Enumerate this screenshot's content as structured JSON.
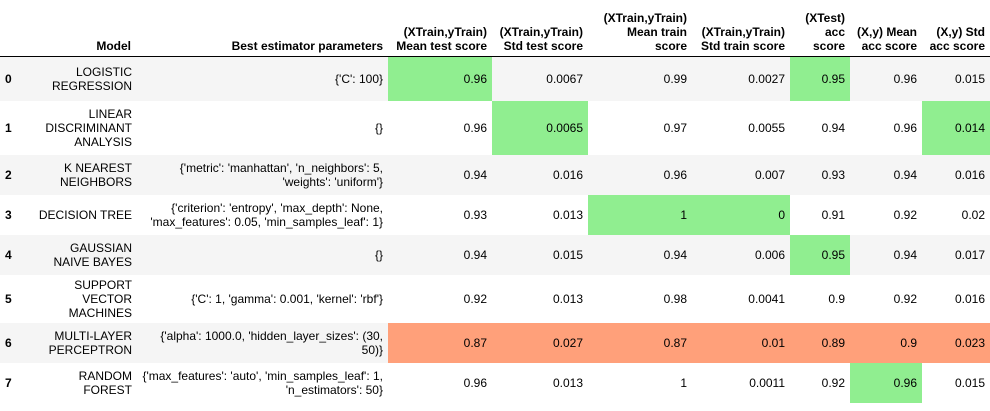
{
  "columns": [
    "",
    "Model",
    "Best estimator parameters",
    "(XTrain,yTrain) Mean test score",
    "(XTrain,yTrain) Std test score",
    "(XTrain,yTrain) Mean train score",
    "(XTrain,yTrain) Std train score",
    "(XTest) acc score",
    "(X,y) Mean acc score",
    "(X,y) Std acc score"
  ],
  "rows": [
    {
      "index": "0",
      "model": "LOGISTIC REGRESSION",
      "params": "{'C': 100}",
      "values": [
        "0.96",
        "0.0067",
        "0.99",
        "0.0027",
        "0.95",
        "0.96",
        "0.015"
      ],
      "highlight": [
        "best",
        "",
        "",
        "",
        "best",
        "",
        ""
      ]
    },
    {
      "index": "1",
      "model": "LINEAR DISCRIMINANT ANALYSIS",
      "params": "{}",
      "values": [
        "0.96",
        "0.0065",
        "0.97",
        "0.0055",
        "0.94",
        "0.96",
        "0.014"
      ],
      "highlight": [
        "",
        "best",
        "",
        "",
        "",
        "",
        "best"
      ]
    },
    {
      "index": "2",
      "model": "K NEAREST NEIGHBORS",
      "params": "{'metric': 'manhattan', 'n_neighbors': 5, 'weights': 'uniform'}",
      "values": [
        "0.94",
        "0.016",
        "0.96",
        "0.007",
        "0.93",
        "0.94",
        "0.016"
      ],
      "highlight": [
        "",
        "",
        "",
        "",
        "",
        "",
        ""
      ]
    },
    {
      "index": "3",
      "model": "DECISION TREE",
      "params": "{'criterion': 'entropy', 'max_depth': None, 'max_features': 0.05, 'min_samples_leaf': 1}",
      "values": [
        "0.93",
        "0.013",
        "1",
        "0",
        "0.91",
        "0.92",
        "0.02"
      ],
      "highlight": [
        "",
        "",
        "best",
        "best",
        "",
        "",
        ""
      ]
    },
    {
      "index": "4",
      "model": "GAUSSIAN NAIVE BAYES",
      "params": "{}",
      "values": [
        "0.94",
        "0.015",
        "0.94",
        "0.006",
        "0.95",
        "0.94",
        "0.017"
      ],
      "highlight": [
        "",
        "",
        "",
        "",
        "best",
        "",
        ""
      ]
    },
    {
      "index": "5",
      "model": "SUPPORT VECTOR MACHINES",
      "params": "{'C': 1, 'gamma': 0.001, 'kernel': 'rbf'}",
      "values": [
        "0.92",
        "0.013",
        "0.98",
        "0.0041",
        "0.9",
        "0.92",
        "0.016"
      ],
      "highlight": [
        "",
        "",
        "",
        "",
        "",
        "",
        ""
      ]
    },
    {
      "index": "6",
      "model": "MULTI-LAYER PERCEPTRON",
      "params": "{'alpha': 1000.0, 'hidden_layer_sizes': (30, 50)}",
      "values": [
        "0.87",
        "0.027",
        "0.87",
        "0.01",
        "0.89",
        "0.9",
        "0.023"
      ],
      "highlight": [
        "worst",
        "worst",
        "worst",
        "worst",
        "worst",
        "worst",
        "worst"
      ]
    },
    {
      "index": "7",
      "model": "RANDOM FOREST",
      "params": "{'max_features': 'auto', 'min_samples_leaf': 1, 'n_estimators': 50}",
      "values": [
        "0.96",
        "0.013",
        "1",
        "0.0011",
        "0.92",
        "0.96",
        "0.015"
      ],
      "highlight": [
        "",
        "",
        "",
        "",
        "",
        "best",
        ""
      ]
    }
  ],
  "colors": {
    "best": "#90ee90",
    "worst": "#ffa07a",
    "stripe": "#f5f5f5"
  }
}
